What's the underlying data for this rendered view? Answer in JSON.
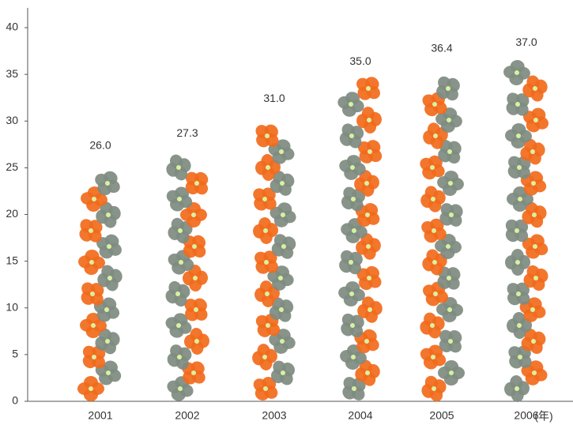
{
  "chart_data": {
    "type": "bar",
    "categories": [
      "2001",
      "2002",
      "2003",
      "2004",
      "2005",
      "2006"
    ],
    "values": [
      26.0,
      27.3,
      31.0,
      35.0,
      36.4,
      37.0
    ],
    "value_labels": [
      "26.0",
      "27.3",
      "31.0",
      "35.0",
      "36.4",
      "37.0"
    ],
    "x_unit": "(年)",
    "colors": [
      "#f26a1b",
      "#7e8b80"
    ],
    "ylim": [
      0,
      40
    ],
    "yticks": [
      0,
      5,
      10,
      15,
      20,
      25,
      30,
      35,
      40
    ],
    "grid": false
  }
}
